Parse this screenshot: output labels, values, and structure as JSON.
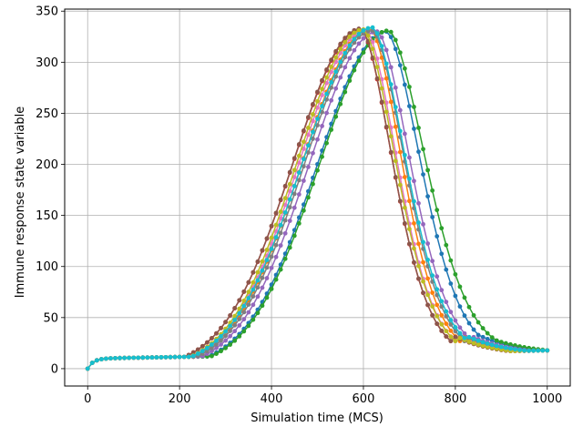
{
  "chart_data": {
    "type": "line",
    "title": "",
    "xlabel": "Simulation time (MCS)",
    "ylabel": "Immune response state variable",
    "xlim": [
      -50,
      1050
    ],
    "ylim": [
      -17,
      352
    ],
    "xticks": [
      0,
      200,
      400,
      600,
      800,
      1000
    ],
    "yticks": [
      0,
      50,
      100,
      150,
      200,
      250,
      300,
      350
    ],
    "grid": true,
    "legend": "none",
    "marker": "circle",
    "sample_step": 10,
    "series": [
      {
        "color": "#1f77b4",
        "peak_x": 650,
        "peak_y": 330,
        "rise_width": 150,
        "fall_width": 85,
        "end_value": 13
      },
      {
        "color": "#ff7f0e",
        "peak_x": 615,
        "peak_y": 333,
        "rise_width": 148,
        "fall_width": 78,
        "end_value": 12
      },
      {
        "color": "#2ca02c",
        "peak_x": 655,
        "peak_y": 331,
        "rise_width": 150,
        "fall_width": 92,
        "end_value": 14
      },
      {
        "color": "#d62728",
        "peak_x": 595,
        "peak_y": 332,
        "rise_width": 148,
        "fall_width": 78,
        "end_value": 12
      },
      {
        "color": "#9467bd",
        "peak_x": 630,
        "peak_y": 330,
        "rise_width": 148,
        "fall_width": 82,
        "end_value": 13
      },
      {
        "color": "#8c564b",
        "peak_x": 595,
        "peak_y": 333,
        "rise_width": 148,
        "fall_width": 78,
        "end_value": 12
      },
      {
        "color": "#e377c2",
        "peak_x": 605,
        "peak_y": 332,
        "rise_width": 145,
        "fall_width": 78,
        "end_value": 12
      },
      {
        "color": "#7f7f7f",
        "peak_x": 620,
        "peak_y": 331,
        "rise_width": 148,
        "fall_width": 80,
        "end_value": 12
      },
      {
        "color": "#bcbd22",
        "peak_x": 600,
        "peak_y": 332,
        "rise_width": 145,
        "fall_width": 80,
        "end_value": 12
      },
      {
        "color": "#17becf",
        "peak_x": 620,
        "peak_y": 334,
        "rise_width": 152,
        "fall_width": 82,
        "end_value": 13
      }
    ]
  }
}
